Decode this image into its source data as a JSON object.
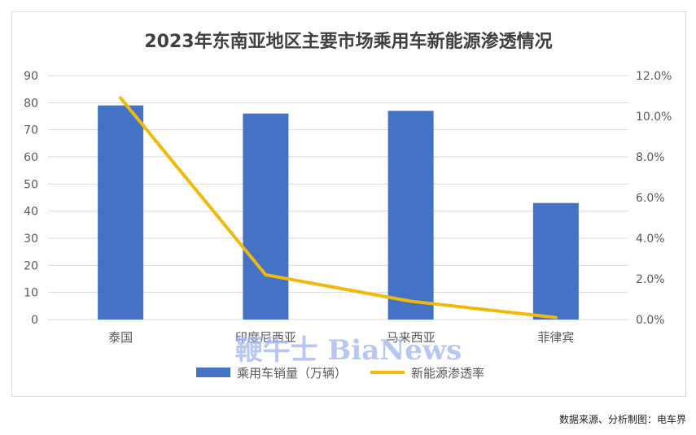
{
  "source_note": "数据来源、分析制图：电车界",
  "watermark": "鞭牛士 BiaNews",
  "chart_data": {
    "type": "bar",
    "title": "2023年东南亚地区主要市场乘用车新能源渗透情况",
    "categories": [
      "泰国",
      "印度尼西亚",
      "马来西亚",
      "菲律宾"
    ],
    "series": [
      {
        "name": "乘用车销量（万辆）",
        "type": "bar",
        "axis": "left",
        "color": "#4472C4",
        "values": [
          79,
          76,
          77,
          43
        ]
      },
      {
        "name": "新能源渗透率",
        "type": "line",
        "axis": "right",
        "color": "#F0B90B",
        "values": [
          0.109,
          0.022,
          0.009,
          0.001
        ]
      }
    ],
    "y_left": {
      "min": 0,
      "max": 90,
      "ticks": [
        0,
        10,
        20,
        30,
        40,
        50,
        60,
        70,
        80,
        90
      ]
    },
    "y_right": {
      "min": 0,
      "max": 0.12,
      "ticks": [
        "0.0%",
        "2.0%",
        "4.0%",
        "6.0%",
        "8.0%",
        "10.0%",
        "12.0%"
      ]
    },
    "grid": true,
    "legend": "bottom",
    "colors": {
      "gridline": "#d9d9d9",
      "axis_text": "#595959",
      "title": "#404040"
    }
  }
}
